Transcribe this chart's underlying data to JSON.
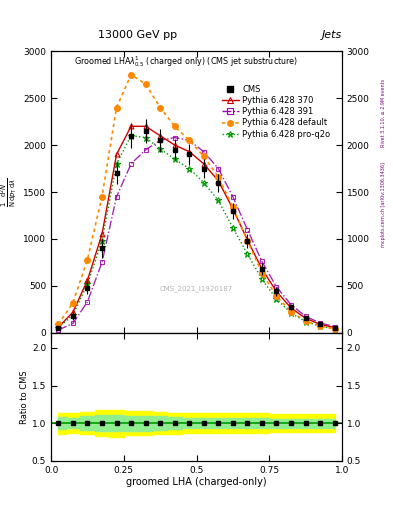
{
  "title_top": "13000 GeV pp",
  "title_right": "Jets",
  "watermark": "CMS_2021_I1920187",
  "rivet_text": "Rivet 3.1.10, ≥ 2.9M events",
  "arxiv_text": "mcplots.cern.ch [arXiv:1306.3436]",
  "xlabel": "groomed LHA (charged-only)",
  "ylabel": "$\\frac{1}{\\mathrm{N}}\\frac{\\mathrm{d}^2N}{\\mathrm{d}p_\\mathrm{T}\\,\\mathrm{d}\\lambda}$",
  "ratio_ylabel": "Ratio to CMS",
  "x": [
    0.025,
    0.075,
    0.125,
    0.175,
    0.225,
    0.275,
    0.325,
    0.375,
    0.425,
    0.475,
    0.525,
    0.575,
    0.625,
    0.675,
    0.725,
    0.775,
    0.825,
    0.875,
    0.925,
    0.975
  ],
  "cms_y": [
    50,
    180,
    480,
    900,
    1700,
    2100,
    2150,
    2050,
    1950,
    1900,
    1750,
    1600,
    1300,
    980,
    680,
    440,
    270,
    160,
    95,
    55
  ],
  "cms_yerr": [
    15,
    40,
    70,
    100,
    120,
    130,
    130,
    120,
    110,
    110,
    100,
    95,
    85,
    75,
    60,
    45,
    30,
    20,
    14,
    10
  ],
  "p370_y": [
    60,
    220,
    560,
    1050,
    1900,
    2200,
    2200,
    2100,
    2000,
    1930,
    1800,
    1620,
    1320,
    990,
    680,
    440,
    265,
    155,
    90,
    55
  ],
  "p391_y": [
    30,
    100,
    330,
    750,
    1450,
    1800,
    1950,
    2050,
    2080,
    2050,
    1930,
    1750,
    1450,
    1100,
    760,
    490,
    300,
    175,
    105,
    65
  ],
  "pdefault_y": [
    90,
    320,
    780,
    1450,
    2400,
    2750,
    2650,
    2400,
    2200,
    2050,
    1880,
    1660,
    1340,
    980,
    640,
    390,
    225,
    125,
    72,
    42
  ],
  "pproq2o_y": [
    55,
    190,
    520,
    980,
    1800,
    2100,
    2080,
    1960,
    1850,
    1750,
    1600,
    1410,
    1120,
    840,
    570,
    360,
    210,
    120,
    70,
    40
  ],
  "color_cms": "#000000",
  "color_p370": "#cc0000",
  "color_p391": "#9900aa",
  "color_pdefault": "#ff8800",
  "color_pproq2o": "#009900",
  "ylim_main": [
    0,
    3000
  ],
  "ylim_ratio": [
    0.5,
    2.2
  ],
  "yticks_main": [
    0,
    500,
    1000,
    1500,
    2000,
    2500,
    3000
  ],
  "yticks_ratio": [
    0.5,
    1.0,
    1.5,
    2.0
  ],
  "xlim": [
    0.0,
    1.0
  ],
  "xticks": [
    0.0,
    0.25,
    0.5,
    0.75,
    1.0
  ],
  "background_color": "#ffffff",
  "ratio_green_lo": [
    0.92,
    0.93,
    0.91,
    0.89,
    0.89,
    0.9,
    0.9,
    0.91,
    0.92,
    0.93,
    0.93,
    0.93,
    0.93,
    0.93,
    0.93,
    0.94,
    0.94,
    0.94,
    0.94,
    0.94
  ],
  "ratio_green_hi": [
    1.08,
    1.07,
    1.09,
    1.11,
    1.11,
    1.1,
    1.1,
    1.09,
    1.08,
    1.07,
    1.07,
    1.07,
    1.07,
    1.07,
    1.07,
    1.06,
    1.06,
    1.06,
    1.06,
    1.06
  ],
  "ratio_yellow_lo": [
    0.86,
    0.87,
    0.85,
    0.83,
    0.82,
    0.84,
    0.84,
    0.85,
    0.86,
    0.87,
    0.87,
    0.87,
    0.87,
    0.87,
    0.87,
    0.88,
    0.88,
    0.88,
    0.88,
    0.88
  ],
  "ratio_yellow_hi": [
    1.14,
    1.13,
    1.15,
    1.17,
    1.18,
    1.16,
    1.16,
    1.15,
    1.14,
    1.13,
    1.13,
    1.13,
    1.13,
    1.13,
    1.13,
    1.12,
    1.12,
    1.12,
    1.12,
    1.12
  ]
}
